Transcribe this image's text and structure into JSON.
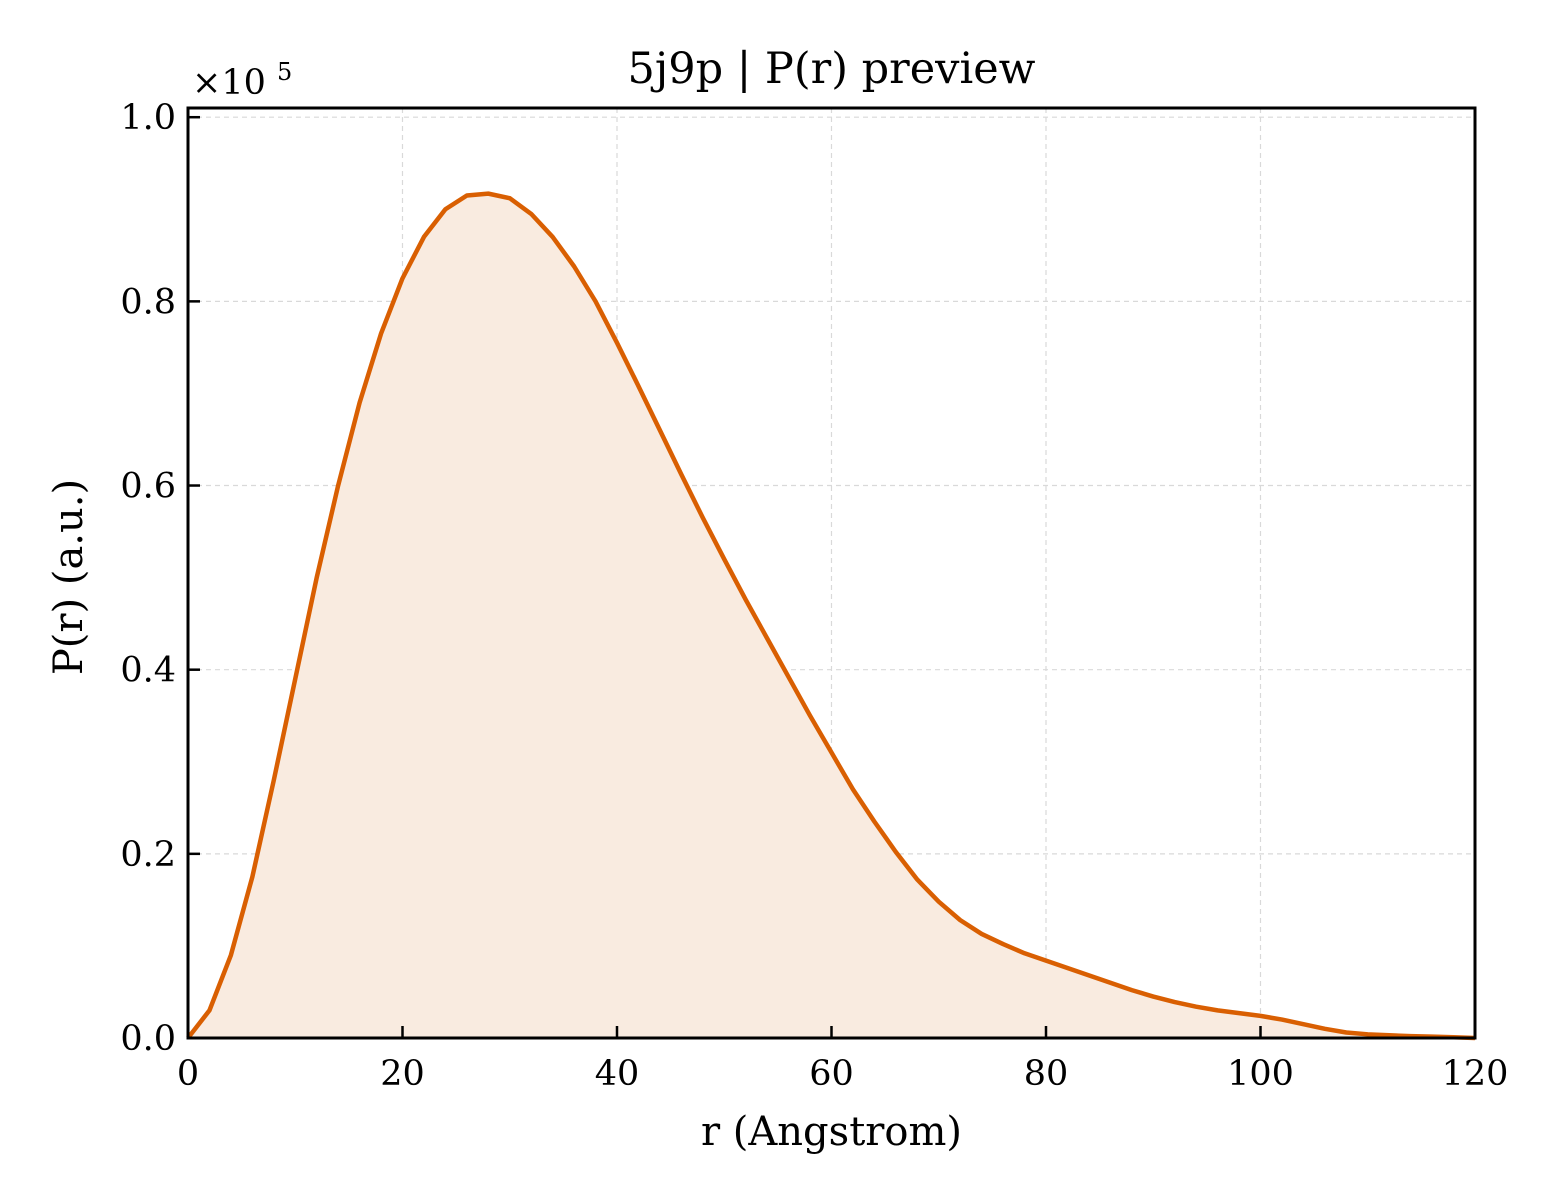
{
  "chart_data": {
    "type": "area",
    "title": "5j9p | P(r) preview",
    "xlabel": "r (Angstrom)",
    "ylabel": "P(r) (a.u.)",
    "y_offset_text": {
      "base": "×10",
      "exponent": "5"
    },
    "xlim": [
      0,
      120
    ],
    "ylim": [
      0,
      1.01
    ],
    "y_scale_factor": 100000,
    "grid": true,
    "legend": "none",
    "x_ticks": [
      0,
      20,
      40,
      60,
      80,
      100,
      120
    ],
    "y_ticks": [
      0.0,
      0.2,
      0.4,
      0.6,
      0.8,
      1.0
    ],
    "x_tick_labels": [
      "0",
      "20",
      "40",
      "60",
      "80",
      "100",
      "120"
    ],
    "y_tick_labels": [
      "0.0",
      "0.2",
      "0.4",
      "0.6",
      "0.8",
      "1.0"
    ],
    "colors": {
      "line": "#d95f02",
      "fill": "#f9ebe0",
      "grid": "#d9d9d9"
    },
    "series": [
      {
        "x": [
          0,
          2,
          4,
          6,
          8,
          10,
          12,
          14,
          16,
          18,
          20,
          22,
          24,
          26,
          28,
          30,
          32,
          34,
          36,
          38,
          40,
          42,
          44,
          46,
          48,
          50,
          52,
          54,
          56,
          58,
          60,
          62,
          64,
          66,
          68,
          70,
          72,
          74,
          76,
          78,
          80,
          82,
          84,
          86,
          88,
          90,
          92,
          94,
          96,
          98,
          100,
          102,
          104,
          106,
          108,
          110,
          112,
          114,
          116,
          118,
          120
        ],
        "y": [
          0.0,
          0.03,
          0.09,
          0.175,
          0.28,
          0.39,
          0.5,
          0.6,
          0.69,
          0.765,
          0.825,
          0.87,
          0.9,
          0.915,
          0.917,
          0.912,
          0.895,
          0.87,
          0.838,
          0.8,
          0.755,
          0.708,
          0.66,
          0.612,
          0.565,
          0.52,
          0.476,
          0.434,
          0.392,
          0.35,
          0.31,
          0.27,
          0.235,
          0.202,
          0.172,
          0.148,
          0.128,
          0.113,
          0.102,
          0.092,
          0.084,
          0.076,
          0.068,
          0.06,
          0.052,
          0.045,
          0.039,
          0.034,
          0.03,
          0.027,
          0.024,
          0.02,
          0.015,
          0.01,
          0.006,
          0.004,
          0.003,
          0.002,
          0.0015,
          0.0008,
          0.0
        ]
      }
    ]
  }
}
